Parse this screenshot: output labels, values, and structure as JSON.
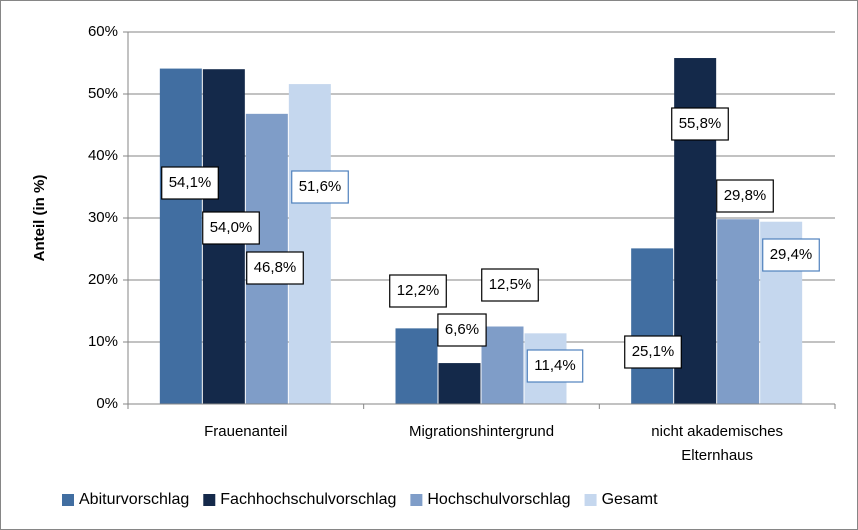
{
  "chart_data": {
    "type": "bar",
    "y_label": "Anteil (in %)",
    "categories": [
      "Frauenanteil",
      "Migrationshintergrund",
      "nicht akademisches Elternhaus"
    ],
    "series": [
      {
        "name": "Abiturvorschlag",
        "color": "#416ea1",
        "values": [
          54.1,
          12.2,
          25.1
        ],
        "value_labels": [
          "54,1%",
          "12,2%",
          "25,1%"
        ]
      },
      {
        "name": "Fachhochschulvorschlag",
        "color": "#14294a",
        "values": [
          54.0,
          6.6,
          55.8
        ],
        "value_labels": [
          "54,0%",
          "6,6%",
          "55,8%"
        ]
      },
      {
        "name": "Hochschulvorschlag",
        "color": "#7f9dc8",
        "values": [
          46.8,
          12.5,
          29.8
        ],
        "value_labels": [
          "46,8%",
          "12,5%",
          "29,8%"
        ]
      },
      {
        "name": "Gesamt",
        "color": "#c5d7ee",
        "values": [
          51.6,
          11.4,
          29.4
        ],
        "value_labels": [
          "51,6%",
          "11,4%",
          "29,4%"
        ]
      }
    ],
    "ylim": [
      0,
      60
    ],
    "yticks": [
      {
        "value": 0,
        "label": "0%"
      },
      {
        "value": 10,
        "label": "10%"
      },
      {
        "value": 20,
        "label": "20%"
      },
      {
        "value": 30,
        "label": "30%"
      },
      {
        "value": 40,
        "label": "40%"
      },
      {
        "value": 50,
        "label": "50%"
      },
      {
        "value": 60,
        "label": "60%"
      }
    ],
    "grid": true,
    "legend": "bottom"
  }
}
